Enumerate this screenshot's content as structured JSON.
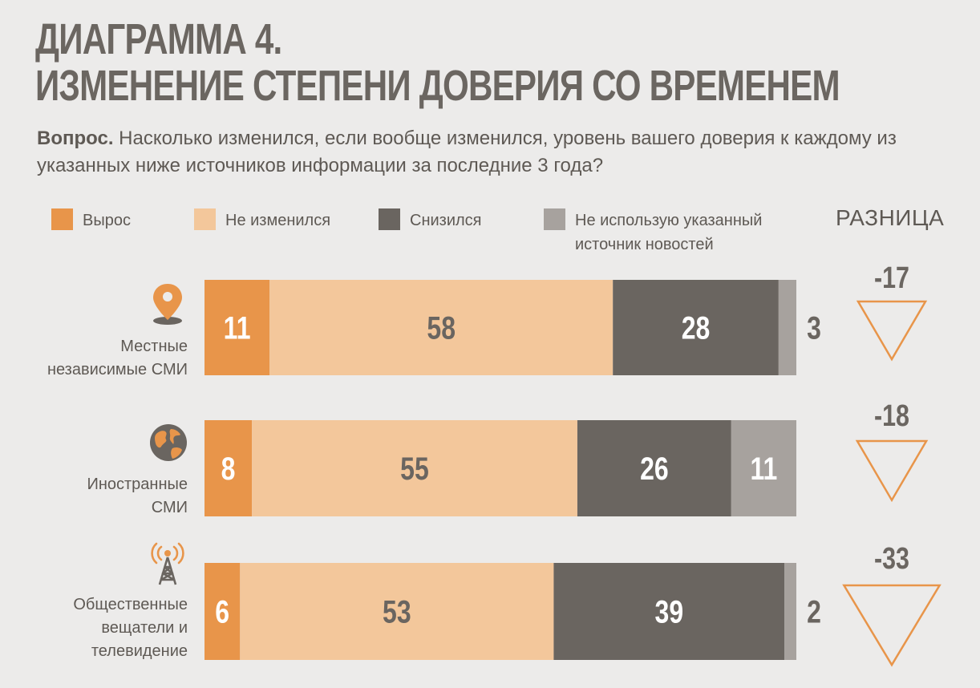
{
  "title": {
    "line1": "ДИАГРАММА 4.",
    "line2": "ИЗМЕНЕНИЕ СТЕПЕНИ ДОВЕРИЯ СО ВРЕМЕНЕМ"
  },
  "question": {
    "label": "Вопрос.",
    "text": " Насколько изменился, если вообще изменился, уровень вашего доверия к каждому из указанных ниже источников информации за последние 3 года?"
  },
  "legend": {
    "items": [
      {
        "label": "Вырос",
        "color": "#e8954a"
      },
      {
        "label": "Не изменился",
        "color": "#f3c79b"
      },
      {
        "label": "Снизился",
        "color": "#6a6560"
      },
      {
        "label": "Не использую указанный источник новостей",
        "color": "#a7a29e"
      }
    ],
    "difference_header": "РАЗНИЦА"
  },
  "categories": [
    {
      "label_lines": [
        "Местные",
        "независимые СМИ"
      ],
      "icon": "location-pin-icon"
    },
    {
      "label_lines": [
        "Иностранные",
        "СМИ"
      ],
      "icon": "globe-icon"
    },
    {
      "label_lines": [
        "Общественные",
        "вещатели и",
        "телевидение"
      ],
      "icon": "broadcast-tower-icon"
    }
  ],
  "differences": [
    "-17",
    "-18",
    "-33"
  ],
  "chart_data": {
    "type": "bar",
    "stacked": true,
    "orientation": "horizontal",
    "title": "ИЗМЕНЕНИЕ СТЕПЕНИ ДОВЕРИЯ СО ВРЕМЕНЕМ",
    "categories": [
      "Местные независимые СМИ",
      "Иностранные СМИ",
      "Общественные вещатели и телевидение"
    ],
    "series": [
      {
        "name": "Вырос",
        "values": [
          11,
          8,
          6
        ],
        "color": "#e8954a"
      },
      {
        "name": "Не изменился",
        "values": [
          58,
          55,
          53
        ],
        "color": "#f3c79b"
      },
      {
        "name": "Снизился",
        "values": [
          28,
          26,
          39
        ],
        "color": "#6a6560"
      },
      {
        "name": "Не использую указанный источник новостей",
        "values": [
          3,
          11,
          2
        ],
        "color": "#a7a29e"
      }
    ],
    "difference": [
      -17,
      -18,
      -33
    ],
    "xlim": [
      0,
      100
    ]
  }
}
